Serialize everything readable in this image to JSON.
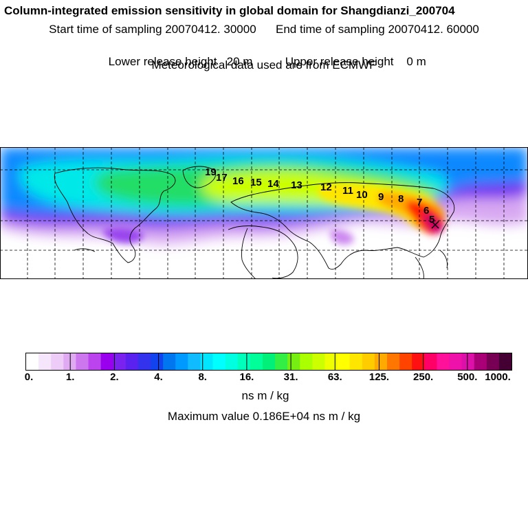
{
  "header": {
    "title": "Column-integrated emission sensitivity in global domain for Shangdianzi_200704",
    "start": "Start time of sampling 20070412. 30000",
    "end": "End time of sampling 20070412. 60000",
    "lower": "Lower release height   20 m",
    "upper": "Upper release height    0 m",
    "met": "Meteorological data used are from ECMWF"
  },
  "map": {
    "trajectory_labels": [
      "19",
      "17",
      "16",
      "15",
      "14",
      "13",
      "12",
      "11",
      "10",
      "9",
      "8",
      "7",
      "6",
      "5"
    ]
  },
  "colorbar": {
    "colors": [
      "#ffffff",
      "#f6e6fb",
      "#edccf7",
      "#e0aaf3",
      "#cc77ee",
      "#bb44ee",
      "#9900ee",
      "#7a22ee",
      "#5a22ee",
      "#3333ee",
      "#1144ee",
      "#0077ee",
      "#0099ff",
      "#11bbff",
      "#00e6ff",
      "#00ffff",
      "#00ffe0",
      "#00ffbb",
      "#00ff99",
      "#00f07a",
      "#33ee44",
      "#77ee11",
      "#aaff00",
      "#ccff00",
      "#eeff00",
      "#ffff00",
      "#ffe600",
      "#ffcc00",
      "#ffaa00",
      "#ff7700",
      "#ff4400",
      "#ff1111",
      "#ff0066",
      "#ff1199",
      "#ee11aa",
      "#dd11aa",
      "#aa0077",
      "#770055",
      "#440033"
    ],
    "tick_labels": [
      "0.",
      "1.",
      "2.",
      "4.",
      "8.",
      "16.",
      "31.",
      "63.",
      "125.",
      "250.",
      "500.",
      "1000."
    ],
    "units": "ns m / kg"
  },
  "footer": {
    "max_value": "Maximum value  0.186E+04 ns m / kg"
  }
}
